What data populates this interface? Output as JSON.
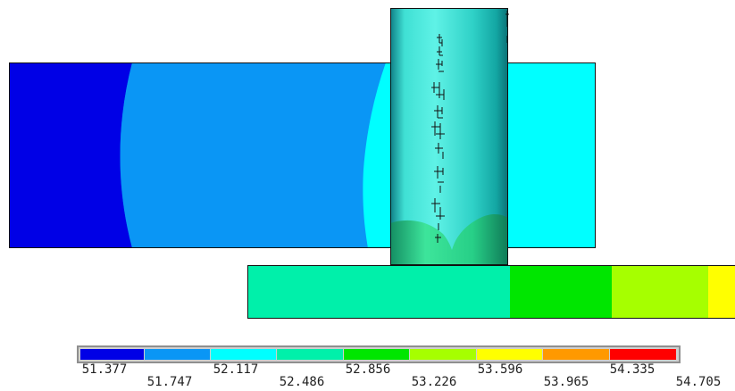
{
  "legend": {
    "colors": [
      "#0000e6",
      "#0a96f5",
      "#00ffff",
      "#00f0aa",
      "#00e600",
      "#a6ff00",
      "#ffff00",
      "#ff9900",
      "#ff0000"
    ],
    "ticks": [
      "51.377",
      "51.747",
      "52.117",
      "52.486",
      "52.856",
      "53.226",
      "53.596",
      "53.965",
      "54.335",
      "54.705"
    ]
  },
  "palette": {
    "plate_left": "#0000e6",
    "plate_mid": "#0a96f5",
    "plate_right": "#00ffff",
    "bar_green": "#00f0aa",
    "bar_bright_green": "#00e600",
    "bar_lime": "#a6ff00",
    "bar_yellow": "#ffff00",
    "cylinder_green": "#2bd98c"
  }
}
